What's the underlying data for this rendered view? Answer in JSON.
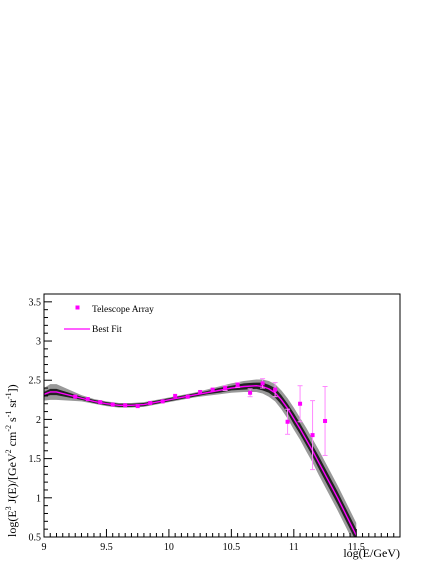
{
  "chart_data": {
    "type": "scatter",
    "xlabel": "log(E/GeV)",
    "ylabel_parts": [
      "log(E",
      "3",
      " J(E)/[GeV",
      "2",
      " cm",
      "-2",
      " s",
      "-1",
      " sr",
      "-1",
      "])"
    ],
    "xlim": [
      9.0,
      11.85
    ],
    "ylim": [
      0.5,
      3.6
    ],
    "x_ticks": [
      9,
      9.5,
      10,
      10.5,
      11,
      11.5
    ],
    "x_tick_labels": [
      "9",
      "9.5",
      "10",
      "10.5",
      "11",
      "11.5"
    ],
    "y_ticks": [
      0.5,
      1,
      1.5,
      2,
      2.5,
      3,
      3.5
    ],
    "y_tick_labels": [
      "0.5",
      "1",
      "1.5",
      "2",
      "2.5",
      "3",
      "3.5"
    ],
    "grid": false,
    "legend_position": "top-left",
    "legend": {
      "data_label": "Telescope Array",
      "fit_label": "Best Fit"
    },
    "colors": {
      "data": "#ff00ff",
      "fit": "#ff00ff",
      "band_outer": "#999999",
      "band_inner": "#222222"
    },
    "series": [
      {
        "name": "Telescope Array",
        "type": "scatter",
        "points": [
          {
            "x": 9.25,
            "y": 2.29,
            "err": 0.02
          },
          {
            "x": 9.35,
            "y": 2.26,
            "err": 0.02
          },
          {
            "x": 9.45,
            "y": 2.22,
            "err": 0.02
          },
          {
            "x": 9.55,
            "y": 2.19,
            "err": 0.02
          },
          {
            "x": 9.65,
            "y": 2.18,
            "err": 0.02
          },
          {
            "x": 9.75,
            "y": 2.17,
            "err": 0.02
          },
          {
            "x": 9.85,
            "y": 2.21,
            "err": 0.02
          },
          {
            "x": 9.95,
            "y": 2.23,
            "err": 0.02
          },
          {
            "x": 10.05,
            "y": 2.3,
            "err": 0.02
          },
          {
            "x": 10.15,
            "y": 2.29,
            "err": 0.02
          },
          {
            "x": 10.25,
            "y": 2.35,
            "err": 0.02
          },
          {
            "x": 10.35,
            "y": 2.38,
            "err": 0.02
          },
          {
            "x": 10.45,
            "y": 2.4,
            "err": 0.03
          },
          {
            "x": 10.55,
            "y": 2.44,
            "err": 0.03
          },
          {
            "x": 10.65,
            "y": 2.34,
            "err": 0.05
          },
          {
            "x": 10.75,
            "y": 2.46,
            "err": 0.06
          },
          {
            "x": 10.85,
            "y": 2.38,
            "err": 0.09
          },
          {
            "x": 10.95,
            "y": 1.97,
            "err": 0.16
          },
          {
            "x": 11.05,
            "y": 2.2,
            "err": 0.23
          },
          {
            "x": 11.15,
            "y": 1.8,
            "err": 0.44
          },
          {
            "x": 11.25,
            "y": 1.98,
            "err": 0.44
          }
        ]
      },
      {
        "name": "Best Fit",
        "type": "line",
        "x": [
          9.0,
          9.05,
          9.1,
          9.2,
          9.3,
          9.4,
          9.5,
          9.6,
          9.7,
          9.8,
          9.9,
          10.0,
          10.1,
          10.2,
          10.3,
          10.4,
          10.5,
          10.6,
          10.7,
          10.75,
          10.8,
          10.85,
          10.9,
          10.95,
          11.0,
          11.05,
          11.1,
          11.15,
          11.2,
          11.25,
          11.3,
          11.35,
          11.4,
          11.45,
          11.5
        ],
        "y": [
          2.32,
          2.35,
          2.35,
          2.31,
          2.27,
          2.23,
          2.2,
          2.18,
          2.18,
          2.19,
          2.22,
          2.25,
          2.28,
          2.31,
          2.34,
          2.37,
          2.4,
          2.42,
          2.43,
          2.42,
          2.39,
          2.34,
          2.25,
          2.14,
          2.01,
          1.88,
          1.74,
          1.6,
          1.45,
          1.3,
          1.15,
          1.0,
          0.84,
          0.68,
          0.52
        ],
        "band_inner": [
          0.03,
          0.04,
          0.04,
          0.03,
          0.02,
          0.02,
          0.02,
          0.02,
          0.02,
          0.02,
          0.02,
          0.02,
          0.02,
          0.02,
          0.02,
          0.03,
          0.03,
          0.04,
          0.04,
          0.05,
          0.05,
          0.06,
          0.06,
          0.06,
          0.07,
          0.07,
          0.07,
          0.07,
          0.08,
          0.08,
          0.08,
          0.08,
          0.08,
          0.08,
          0.08
        ],
        "band_outer": [
          0.08,
          0.1,
          0.1,
          0.07,
          0.04,
          0.03,
          0.03,
          0.03,
          0.03,
          0.03,
          0.03,
          0.03,
          0.03,
          0.03,
          0.04,
          0.05,
          0.06,
          0.07,
          0.08,
          0.09,
          0.1,
          0.11,
          0.12,
          0.13,
          0.14,
          0.14,
          0.15,
          0.15,
          0.16,
          0.16,
          0.16,
          0.16,
          0.16,
          0.16,
          0.16
        ]
      }
    ]
  }
}
